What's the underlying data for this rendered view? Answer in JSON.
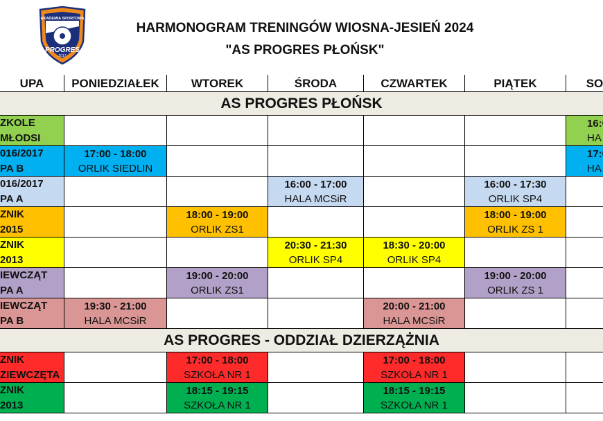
{
  "title": {
    "line1": "HARMONOGRAM TRENINGÓW WIOSNA-JESIEŃ 2024",
    "line2": "\"AS PROGRES PŁOŃSK\""
  },
  "logo": {
    "text_top": "AKADEMIA SPORTOWA",
    "text_main": "PROGRES",
    "year": "2017"
  },
  "headers": [
    "UPA",
    "PONIEDZIAŁEK",
    "WTOREK",
    "ŚRODA",
    "CZWARTEK",
    "PIĄTEK",
    "SO"
  ],
  "sections": [
    {
      "name": "AS PROGRES PŁOŃSK",
      "rows": [
        {
          "group": [
            "ZKOLE",
            "MŁODSI"
          ],
          "color": "#92d050",
          "cells": [
            null,
            null,
            null,
            null,
            null,
            [
              "16:0",
              "HA"
            ]
          ]
        },
        {
          "group": [
            "016/2017",
            "PA B"
          ],
          "color": "#00b0f0",
          "cells": [
            [
              "17:00 - 18:00",
              "ORLIK SIEDLIN"
            ],
            null,
            null,
            null,
            null,
            [
              "17:0",
              "HA"
            ]
          ]
        },
        {
          "group": [
            "016/2017",
            "PA A"
          ],
          "color": "#c5d9f1",
          "cells": [
            null,
            null,
            [
              "16:00 - 17:00",
              "HALA MCSiR"
            ],
            null,
            [
              "16:00 - 17:30",
              "ORLIK SP4"
            ],
            null
          ]
        },
        {
          "group": [
            "ZNIK",
            "2015"
          ],
          "color": "#ffc000",
          "cells": [
            null,
            [
              "18:00 - 19:00",
              "ORLIK ZS1"
            ],
            null,
            null,
            [
              "18:00 - 19:00",
              "ORLIK ZS 1"
            ],
            null
          ]
        },
        {
          "group": [
            "ZNIK",
            "2013"
          ],
          "color": "#ffff00",
          "cells": [
            null,
            null,
            [
              "20:30 - 21:30",
              "ORLIK SP4"
            ],
            [
              "18:30 - 20:00",
              "ORLIK SP4"
            ],
            null,
            null
          ]
        },
        {
          "group": [
            "IEWCZĄT",
            "PA A"
          ],
          "color": "#b1a0c7",
          "cells": [
            null,
            [
              "19:00 - 20:00",
              "ORLIK ZS1"
            ],
            null,
            null,
            [
              "19:00 - 20:00",
              "ORLIK ZS 1"
            ],
            null
          ]
        },
        {
          "group": [
            "IEWCZĄT",
            "PA B"
          ],
          "color": "#da9694",
          "cells": [
            [
              "19:30 - 21:00",
              "HALA MCSiR"
            ],
            null,
            null,
            [
              "20:00 - 21:00",
              "HALA MCSiR"
            ],
            null,
            null
          ]
        }
      ]
    },
    {
      "name": "AS PROGRES - ODDZIAŁ DZIERZĄŻNIA",
      "rows": [
        {
          "group": [
            "ZNIK",
            "ZIEWCZĘTA"
          ],
          "color": "#ff2a2a",
          "cells": [
            null,
            [
              "17:00 - 18:00",
              "SZKOŁA NR 1"
            ],
            null,
            [
              "17:00 - 18:00",
              "SZKOŁA NR 1"
            ],
            null,
            null
          ]
        },
        {
          "group": [
            "ZNIK",
            "2013"
          ],
          "color": "#00b050",
          "cells": [
            null,
            [
              "18:15 - 19:15",
              "SZKOŁA NR 1"
            ],
            null,
            [
              "18:15 - 19:15",
              "SZKOŁA NR 1"
            ],
            null,
            null
          ]
        }
      ]
    }
  ]
}
